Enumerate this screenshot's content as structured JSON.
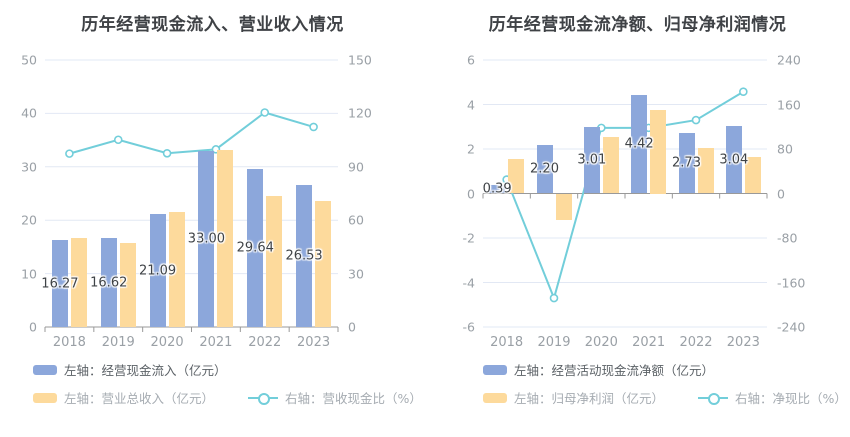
{
  "page": {
    "background": "#ffffff"
  },
  "colors": {
    "bar_blue": "#8ca7db",
    "bar_yellow": "#fdda9c",
    "line_teal": "#72ceda",
    "grid": "#e2e8f4",
    "axis_line": "#999999",
    "axis_text": "#9aa0a6",
    "title_text": "#3f4246",
    "value_label_text": "#3f4347"
  },
  "chart_data": [
    {
      "type": "bar",
      "title": "历年经营现金流入、营业收入情况",
      "categories": [
        "2018",
        "2019",
        "2020",
        "2021",
        "2022",
        "2023"
      ],
      "left_axis": {
        "label": "亿元",
        "min": 0,
        "max": 50,
        "ticks": [
          0,
          10,
          20,
          30,
          40,
          50
        ]
      },
      "right_axis": {
        "label": "%",
        "min": 0,
        "max": 150,
        "ticks": [
          0,
          30,
          60,
          90,
          120,
          150
        ]
      },
      "grid": true,
      "legend_position": "bottom-left",
      "series": [
        {
          "id": "operating-cash-inflow",
          "name": "左轴：经营现金流入（亿元）",
          "type": "bar",
          "axis": "left",
          "color": "#8ca7db",
          "values": [
            16.27,
            16.62,
            21.09,
            33.0,
            29.64,
            26.53
          ],
          "labels": [
            "16.27",
            "16.62",
            "21.09",
            "33.00",
            "29.64",
            "26.53"
          ]
        },
        {
          "id": "total-revenue",
          "name": "左轴：营业总收入（亿元）",
          "type": "bar",
          "axis": "left",
          "color": "#fdda9c",
          "values": [
            16.7,
            15.8,
            21.6,
            33.1,
            24.6,
            23.6
          ]
        },
        {
          "id": "cash-to-revenue-ratio",
          "name": "右轴：营收现金比（%）",
          "type": "line",
          "axis": "right",
          "color": "#72ceda",
          "values": [
            97.4,
            105.2,
            97.6,
            99.8,
            120.5,
            112.4
          ]
        }
      ]
    },
    {
      "type": "bar",
      "title": "历年经营现金流净额、归母净利润情况",
      "categories": [
        "2018",
        "2019",
        "2020",
        "2021",
        "2022",
        "2023"
      ],
      "left_axis": {
        "label": "亿元",
        "min": -6,
        "max": 6,
        "ticks": [
          -6,
          -4,
          -2,
          0,
          2,
          4,
          6
        ]
      },
      "right_axis": {
        "label": "%",
        "min": -240,
        "max": 240,
        "ticks": [
          -240,
          -160,
          -80,
          0,
          80,
          160,
          240
        ]
      },
      "grid": true,
      "legend_position": "bottom-left",
      "series": [
        {
          "id": "net-operating-cash-flow",
          "name": "左轴：经营活动现金流净额（亿元）",
          "type": "bar",
          "axis": "left",
          "color": "#8ca7db",
          "values": [
            0.39,
            2.2,
            3.01,
            4.42,
            2.73,
            3.04
          ],
          "labels": [
            "0.39",
            "2.20",
            "3.01",
            "4.42",
            "2.73",
            "3.04"
          ]
        },
        {
          "id": "net-profit",
          "name": "左轴：归母净利润（亿元）",
          "type": "bar",
          "axis": "left",
          "color": "#fdda9c",
          "values": [
            1.55,
            -1.2,
            2.55,
            3.75,
            2.05,
            1.65
          ]
        },
        {
          "id": "cash-to-profit-ratio",
          "name": "右轴：净现比（%）",
          "type": "line",
          "axis": "right",
          "values": [
            25,
            -188,
            118,
            118,
            132,
            183
          ],
          "color": "#72ceda"
        }
      ]
    }
  ]
}
